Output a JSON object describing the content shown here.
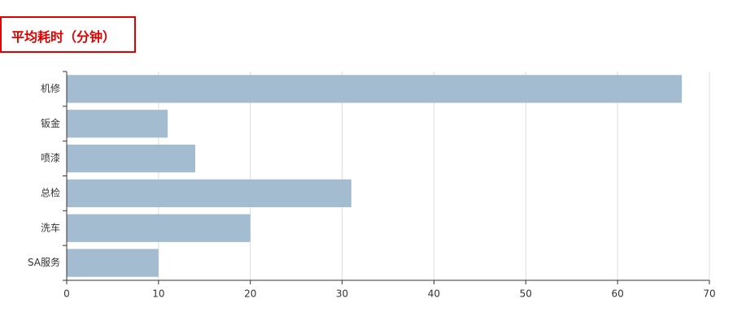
{
  "chart_data": {
    "type": "barh",
    "title": "平均耗时（分钟）",
    "categories": [
      "机修",
      "钣金",
      "喷漆",
      "总检",
      "洗车",
      "SA服务"
    ],
    "values": [
      67,
      11,
      14,
      31,
      20,
      10
    ],
    "color": "#a3bcd0",
    "xlim": [
      0,
      70
    ],
    "xticks": [
      0,
      10,
      20,
      30,
      40,
      50,
      60,
      70
    ],
    "grid": true
  }
}
